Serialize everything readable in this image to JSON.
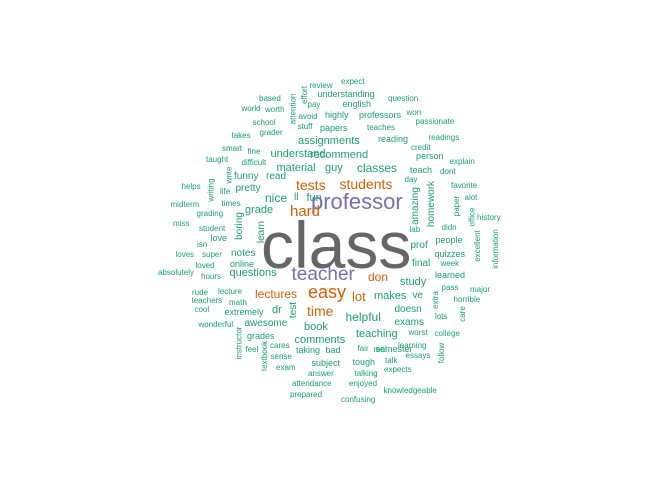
{
  "colors": {
    "largest": "#666666",
    "large": "#7570B3",
    "medium": "#D95F02",
    "small": "#1B9E77"
  },
  "words": [
    {
      "text": "class",
      "tier": "largest"
    },
    {
      "text": "professor",
      "tier": "large"
    },
    {
      "text": "teacher",
      "tier": "large"
    },
    {
      "text": "easy",
      "tier": "medium"
    },
    {
      "text": "students",
      "tier": "medium"
    },
    {
      "text": "tests",
      "tier": "medium"
    },
    {
      "text": "hard",
      "tier": "medium"
    },
    {
      "text": "time",
      "tier": "medium"
    },
    {
      "text": "lot",
      "tier": "medium"
    },
    {
      "text": "don",
      "tier": "medium"
    },
    {
      "text": "lectures",
      "tier": "medium"
    },
    {
      "text": "helpful",
      "tier": "small"
    },
    {
      "text": "classes",
      "tier": "small"
    },
    {
      "text": "recommend",
      "tier": "small"
    },
    {
      "text": "assignments",
      "tier": "small"
    },
    {
      "text": "understand",
      "tier": "small"
    },
    {
      "text": "material",
      "tier": "small"
    },
    {
      "text": "guy",
      "tier": "small"
    },
    {
      "text": "nice",
      "tier": "small"
    },
    {
      "text": "ll",
      "tier": "small"
    },
    {
      "text": "fun",
      "tier": "small"
    },
    {
      "text": "grade",
      "tier": "small"
    },
    {
      "text": "notes",
      "tier": "small"
    },
    {
      "text": "questions",
      "tier": "small"
    },
    {
      "text": "makes",
      "tier": "small"
    },
    {
      "text": "study",
      "tier": "small"
    },
    {
      "text": "teaching",
      "tier": "small"
    },
    {
      "text": "comments",
      "tier": "small"
    },
    {
      "text": "book",
      "tier": "small"
    },
    {
      "text": "exams",
      "tier": "small"
    },
    {
      "text": "doesn",
      "tier": "small"
    },
    {
      "text": "prof",
      "tier": "small"
    },
    {
      "text": "final",
      "tier": "small"
    },
    {
      "text": "ve",
      "tier": "small"
    },
    {
      "text": "dr",
      "tier": "small"
    },
    {
      "text": "pretty",
      "tier": "small"
    },
    {
      "text": "read",
      "tier": "small"
    },
    {
      "text": "funny",
      "tier": "small"
    },
    {
      "text": "boring",
      "tier": "small"
    },
    {
      "text": "learn",
      "tier": "small"
    },
    {
      "text": "homework",
      "tier": "small"
    },
    {
      "text": "amazing",
      "tier": "small"
    },
    {
      "text": "test",
      "tier": "small"
    },
    {
      "text": "semester",
      "tier": "small"
    },
    {
      "text": "awesome",
      "tier": "small"
    },
    {
      "text": "grades",
      "tier": "small"
    },
    {
      "text": "online",
      "tier": "small"
    },
    {
      "text": "love",
      "tier": "small"
    },
    {
      "text": "quizzes",
      "tier": "small"
    },
    {
      "text": "people",
      "tier": "small"
    },
    {
      "text": "learned",
      "tier": "small"
    },
    {
      "text": "extremely",
      "tier": "small"
    },
    {
      "text": "taking",
      "tier": "small"
    },
    {
      "text": "bad",
      "tier": "small"
    },
    {
      "text": "subject",
      "tier": "small"
    },
    {
      "text": "tough",
      "tier": "small"
    },
    {
      "text": "talk",
      "tier": "small"
    },
    {
      "text": "papers",
      "tier": "small"
    },
    {
      "text": "reading",
      "tier": "small"
    },
    {
      "text": "teach",
      "tier": "small"
    },
    {
      "text": "person",
      "tier": "small"
    },
    {
      "text": "highly",
      "tier": "small"
    },
    {
      "text": "professors",
      "tier": "small"
    },
    {
      "text": "english",
      "tier": "small"
    },
    {
      "text": "understanding",
      "tier": "small"
    },
    {
      "text": "review",
      "tier": "small"
    },
    {
      "text": "expect",
      "tier": "small"
    },
    {
      "text": "question",
      "tier": "small"
    },
    {
      "text": "based",
      "tier": "small"
    },
    {
      "text": "world",
      "tier": "small"
    },
    {
      "text": "worth",
      "tier": "small"
    },
    {
      "text": "attention",
      "tier": "small"
    },
    {
      "text": "effort",
      "tier": "small"
    },
    {
      "text": "pay",
      "tier": "small"
    },
    {
      "text": "avoid",
      "tier": "small"
    },
    {
      "text": "stuff",
      "tier": "small"
    },
    {
      "text": "won",
      "tier": "small"
    },
    {
      "text": "passionate",
      "tier": "small"
    },
    {
      "text": "school",
      "tier": "small"
    },
    {
      "text": "grader",
      "tier": "small"
    },
    {
      "text": "teaches",
      "tier": "small"
    },
    {
      "text": "takes",
      "tier": "small"
    },
    {
      "text": "readings",
      "tier": "small"
    },
    {
      "text": "smart",
      "tier": "small"
    },
    {
      "text": "fine",
      "tier": "small"
    },
    {
      "text": "credit",
      "tier": "small"
    },
    {
      "text": "taught",
      "tier": "small"
    },
    {
      "text": "difficult",
      "tier": "small"
    },
    {
      "text": "explain",
      "tier": "small"
    },
    {
      "text": "dont",
      "tier": "small"
    },
    {
      "text": "day",
      "tier": "small"
    },
    {
      "text": "write",
      "tier": "small"
    },
    {
      "text": "life",
      "tier": "small"
    },
    {
      "text": "writing",
      "tier": "small"
    },
    {
      "text": "helps",
      "tier": "small"
    },
    {
      "text": "favorite",
      "tier": "small"
    },
    {
      "text": "alot",
      "tier": "small"
    },
    {
      "text": "times",
      "tier": "small"
    },
    {
      "text": "midterm",
      "tier": "small"
    },
    {
      "text": "paper",
      "tier": "small"
    },
    {
      "text": "office",
      "tier": "small"
    },
    {
      "text": "grading",
      "tier": "small"
    },
    {
      "text": "history",
      "tier": "small"
    },
    {
      "text": "miss",
      "tier": "small"
    },
    {
      "text": "student",
      "tier": "small"
    },
    {
      "text": "lab",
      "tier": "small"
    },
    {
      "text": "didn",
      "tier": "small"
    },
    {
      "text": "excellent",
      "tier": "small"
    },
    {
      "text": "information",
      "tier": "small"
    },
    {
      "text": "isn",
      "tier": "small"
    },
    {
      "text": "loves",
      "tier": "small"
    },
    {
      "text": "super",
      "tier": "small"
    },
    {
      "text": "hours",
      "tier": "small"
    },
    {
      "text": "loved",
      "tier": "small"
    },
    {
      "text": "absolutely",
      "tier": "small"
    },
    {
      "text": "week",
      "tier": "small"
    },
    {
      "text": "rude",
      "tier": "small"
    },
    {
      "text": "lecture",
      "tier": "small"
    },
    {
      "text": "pass",
      "tier": "small"
    },
    {
      "text": "major",
      "tier": "small"
    },
    {
      "text": "teachers",
      "tier": "small"
    },
    {
      "text": "math",
      "tier": "small"
    },
    {
      "text": "extra",
      "tier": "small"
    },
    {
      "text": "horrible",
      "tier": "small"
    },
    {
      "text": "cool",
      "tier": "small"
    },
    {
      "text": "lots",
      "tier": "small"
    },
    {
      "text": "care",
      "tier": "small"
    },
    {
      "text": "wonderful",
      "tier": "small"
    },
    {
      "text": "college",
      "tier": "small"
    },
    {
      "text": "instructor",
      "tier": "small"
    },
    {
      "text": "feel",
      "tier": "small"
    },
    {
      "text": "cares",
      "tier": "small"
    },
    {
      "text": "worst",
      "tier": "small"
    },
    {
      "text": "follow",
      "tier": "small"
    },
    {
      "text": "textbook",
      "tier": "small"
    },
    {
      "text": "sense",
      "tier": "small"
    },
    {
      "text": "fair",
      "tier": "small"
    },
    {
      "text": "real",
      "tier": "small"
    },
    {
      "text": "learning",
      "tier": "small"
    },
    {
      "text": "exam",
      "tier": "small"
    },
    {
      "text": "essays",
      "tier": "small"
    },
    {
      "text": "answer",
      "tier": "small"
    },
    {
      "text": "talking",
      "tier": "small"
    },
    {
      "text": "expects",
      "tier": "small"
    },
    {
      "text": "attendance",
      "tier": "small"
    },
    {
      "text": "enjoyed",
      "tier": "small"
    },
    {
      "text": "prepared",
      "tier": "small"
    },
    {
      "text": "knowledgeable",
      "tier": "small"
    },
    {
      "text": "confusing",
      "tier": "small"
    }
  ]
}
